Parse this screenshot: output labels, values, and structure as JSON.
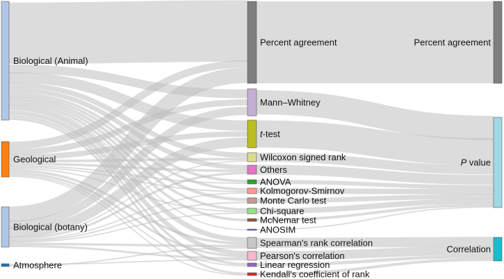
{
  "chart_data": {
    "type": "sankey",
    "sources": [
      {
        "id": "bio_animal",
        "label": "Biological (Animal)",
        "color": "#aec7e8"
      },
      {
        "id": "geological",
        "label": "Geological",
        "color": "#ff7f0e"
      },
      {
        "id": "bio_botany",
        "label": "Biological (botany)",
        "color": "#aec7e8"
      },
      {
        "id": "atmosphere",
        "label": "Atmosphere",
        "color": "#1f77b4"
      }
    ],
    "methods": [
      {
        "id": "pa",
        "label": "Percent agreement",
        "color": "#7f7f7f"
      },
      {
        "id": "mw",
        "label": "Mann–Whitney",
        "color": "#c5b0d5"
      },
      {
        "id": "tt",
        "label_prefix": "t",
        "label": "-test",
        "color": "#bcbd22"
      },
      {
        "id": "ws",
        "label": "Wilcoxon signed rank",
        "color": "#dbdb8d"
      },
      {
        "id": "ot",
        "label": "Others",
        "color": "#e377c2"
      },
      {
        "id": "an",
        "label": "ANOVA",
        "color": "#2ca02c"
      },
      {
        "id": "ks",
        "label": "Kolmogorov-Smirnov",
        "color": "#ff9896"
      },
      {
        "id": "mc",
        "label": "Monte Carlo test",
        "color": "#c49c94"
      },
      {
        "id": "cs",
        "label": "Chi-square",
        "color": "#98df8a"
      },
      {
        "id": "mn",
        "label": "McNemar test",
        "color": "#8c564b"
      },
      {
        "id": "ao",
        "label": "ANOSIM",
        "color": "#9467bd"
      },
      {
        "id": "sr",
        "label": "Spearman's rank correlation",
        "color": "#c7c7c7"
      },
      {
        "id": "pc",
        "label": "Pearson's correlation",
        "color": "#f7b6d2"
      },
      {
        "id": "lr",
        "label": "Linear regression",
        "color": "#9467bd"
      },
      {
        "id": "kc",
        "label": "Kendall's coefficient of rank",
        "color": "#d62728"
      }
    ],
    "outcomes": [
      {
        "id": "pa_out",
        "label": "Percent agreement",
        "color": "#7f7f7f"
      },
      {
        "id": "pv",
        "label_prefix": "P",
        "label": " value",
        "color": "#9edae5"
      },
      {
        "id": "co",
        "label": "Correlation",
        "color": "#17becf"
      }
    ],
    "links_source_method": [
      [
        "bio_animal",
        "pa",
        26
      ],
      [
        "bio_animal",
        "mw",
        3
      ],
      [
        "bio_animal",
        "tt",
        4
      ],
      [
        "bio_animal",
        "ws",
        2
      ],
      [
        "bio_animal",
        "ot",
        2
      ],
      [
        "bio_animal",
        "an",
        1
      ],
      [
        "bio_animal",
        "ks",
        1
      ],
      [
        "bio_animal",
        "mc",
        1
      ],
      [
        "bio_animal",
        "cs",
        1
      ],
      [
        "bio_animal",
        "mn",
        1
      ],
      [
        "bio_animal",
        "ao",
        0.4
      ],
      [
        "bio_animal",
        "sr",
        2
      ],
      [
        "bio_animal",
        "pc",
        2
      ],
      [
        "bio_animal",
        "lr",
        1
      ],
      [
        "bio_animal",
        "kc",
        1
      ],
      [
        "geological",
        "pa",
        3
      ],
      [
        "geological",
        "mw",
        2
      ],
      [
        "geological",
        "tt",
        2
      ],
      [
        "geological",
        "ws",
        1
      ],
      [
        "geological",
        "ot",
        1
      ],
      [
        "geological",
        "an",
        0.5
      ],
      [
        "geological",
        "ks",
        0.5
      ],
      [
        "geological",
        "cs",
        0.5
      ],
      [
        "geological",
        "sr",
        1
      ],
      [
        "geological",
        "pc",
        1
      ],
      [
        "geological",
        "lr",
        0.5
      ],
      [
        "geological",
        "kc",
        0.5
      ],
      [
        "bio_botany",
        "pa",
        7
      ],
      [
        "bio_botany",
        "mw",
        3
      ],
      [
        "bio_botany",
        "tt",
        4
      ],
      [
        "bio_botany",
        "ws",
        0.5
      ],
      [
        "bio_botany",
        "ot",
        1
      ],
      [
        "bio_botany",
        "ks",
        0.5
      ],
      [
        "bio_botany",
        "mc",
        0.5
      ],
      [
        "bio_botany",
        "cs",
        0.5
      ],
      [
        "bio_botany",
        "sr",
        1
      ],
      [
        "bio_botany",
        "pc",
        1
      ],
      [
        "atmosphere",
        "pc",
        0.5
      ],
      [
        "atmosphere",
        "sr",
        0.5
      ]
    ],
    "links_method_outcome": [
      [
        "pa",
        "pa_out",
        36
      ],
      [
        "mw",
        "pv",
        8
      ],
      [
        "tt",
        "pv",
        10
      ],
      [
        "ws",
        "pv",
        3.5
      ],
      [
        "ot",
        "pv",
        4
      ],
      [
        "an",
        "pv",
        1.5
      ],
      [
        "ks",
        "pv",
        2
      ],
      [
        "mc",
        "pv",
        1.5
      ],
      [
        "cs",
        "pv",
        2
      ],
      [
        "mn",
        "pv",
        1
      ],
      [
        "ao",
        "pv",
        0.4
      ],
      [
        "sr",
        "co",
        4.5
      ],
      [
        "pc",
        "co",
        4.5
      ],
      [
        "lr",
        "co",
        1.5
      ],
      [
        "kc",
        "co",
        1.5
      ]
    ]
  }
}
